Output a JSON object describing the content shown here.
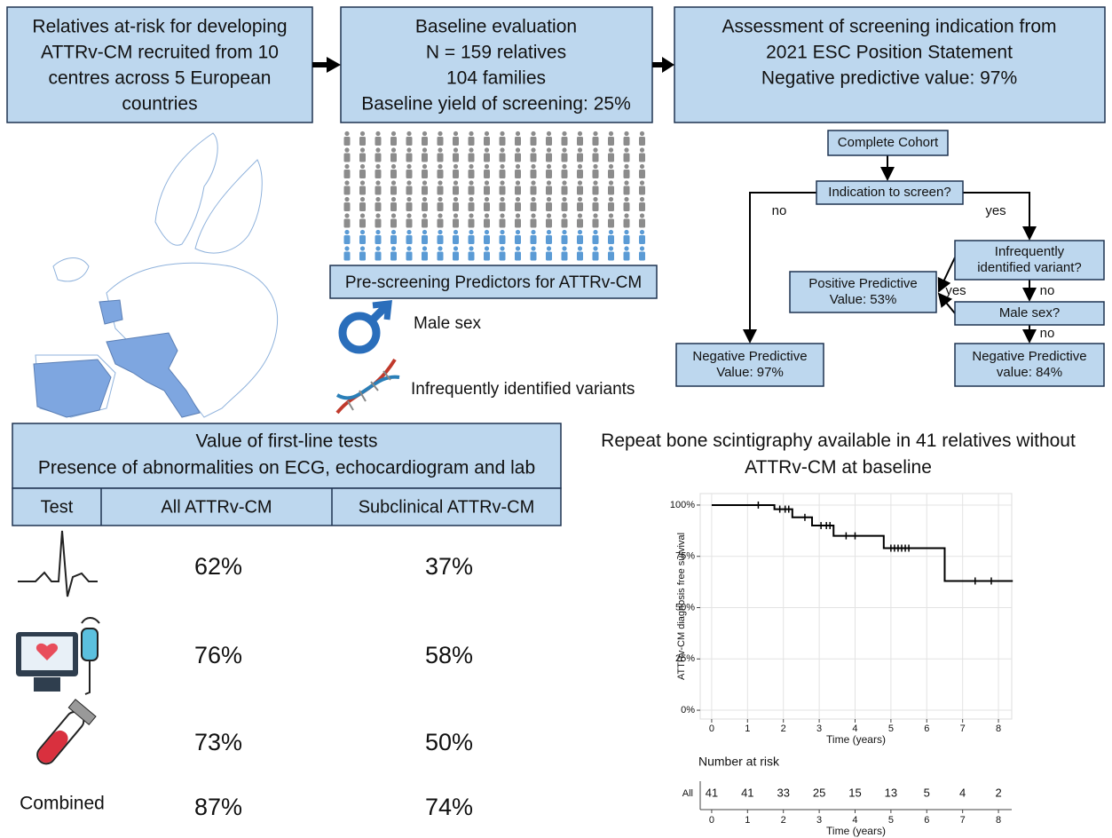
{
  "top": {
    "recruitment": {
      "lines": [
        "Relatives at-risk for developing",
        "ATTRv-CM recruited from 10",
        "centres across 5 European",
        "countries"
      ]
    },
    "baseline": {
      "lines": [
        "Baseline evaluation",
        "N = 159 relatives",
        "104 families",
        "Baseline yield of screening: 25%"
      ]
    },
    "assessment": {
      "lines": [
        "Assessment of screening indication from",
        "2021 ESC Position Statement",
        "Negative predictive value: 97%"
      ]
    }
  },
  "predictors": {
    "title": "Pre-screening Predictors for ATTRv-CM",
    "items": [
      "Male sex",
      "Infrequently identified variants"
    ]
  },
  "flowchart": {
    "nodes": [
      {
        "lines": [
          "Complete Cohort"
        ]
      },
      {
        "lines": [
          "Indication to screen?"
        ]
      },
      {
        "lines": [
          "Infrequently",
          "identified variant?"
        ]
      },
      {
        "lines": [
          "Positive Predictive",
          "Value: 53%"
        ]
      },
      {
        "lines": [
          "Male sex?"
        ]
      },
      {
        "lines": [
          "Negative Predictive",
          "Value: 97%"
        ]
      },
      {
        "lines": [
          "Negative Predictive",
          "value: 84%"
        ]
      }
    ],
    "edge_labels": [
      "no",
      "yes",
      "yes",
      "no",
      "no"
    ]
  },
  "tests": {
    "title_lines": [
      "Value of first-line tests",
      "Presence of abnormalities on ECG, echocardiogram and lab"
    ],
    "header": [
      "Test",
      "All ATTRv-CM",
      "Subclinical ATTRv-CM"
    ],
    "rows": [
      {
        "all": "62%",
        "subclinical": "37%"
      },
      {
        "all": "76%",
        "subclinical": "58%"
      },
      {
        "all": "73%",
        "subclinical": "50%"
      },
      {
        "label": "Combined",
        "all": "87%",
        "subclinical": "74%"
      }
    ]
  },
  "chart_data": {
    "type": "line",
    "step": "post",
    "title": "Repeat bone scintigraphy available in 41 relatives without ATTRv-CM at baseline",
    "xlabel": "Time (years)",
    "ylabel": "ATTRv-CM diagnosis free survival",
    "x": [
      0,
      1.75,
      2.25,
      2.8,
      3.4,
      4.8,
      6.5,
      8.4
    ],
    "values": [
      100,
      98,
      94,
      90,
      85,
      79,
      63,
      63
    ],
    "color": "#000000",
    "censored": {
      "x": [
        1.3,
        1.9,
        2.05,
        2.15,
        2.6,
        3.05,
        3.2,
        3.3,
        3.75,
        4.0,
        5.0,
        5.1,
        5.2,
        5.3,
        5.4,
        5.5,
        7.35,
        7.8
      ],
      "values": [
        100,
        98,
        98,
        98,
        94,
        90,
        90,
        90,
        85,
        85,
        79,
        79,
        79,
        79,
        79,
        79,
        63,
        63
      ]
    },
    "xlim": [
      -0.32,
      8.37
    ],
    "ylim": [
      -4.3,
      105.6
    ],
    "xticks": [
      0,
      1,
      2,
      3,
      4,
      5,
      6,
      7,
      8
    ],
    "yticks": [
      {
        "value": 0,
        "label": "0%"
      },
      {
        "value": 25,
        "label": "25%"
      },
      {
        "value": 50,
        "label": "50%"
      },
      {
        "value": 75,
        "label": "75%"
      },
      {
        "value": 100,
        "label": "100%"
      }
    ],
    "grid": true,
    "risk_table": {
      "title": "Number at risk",
      "group": "All",
      "counts": [
        41,
        41,
        33,
        25,
        15,
        13,
        5,
        4,
        2
      ]
    }
  }
}
